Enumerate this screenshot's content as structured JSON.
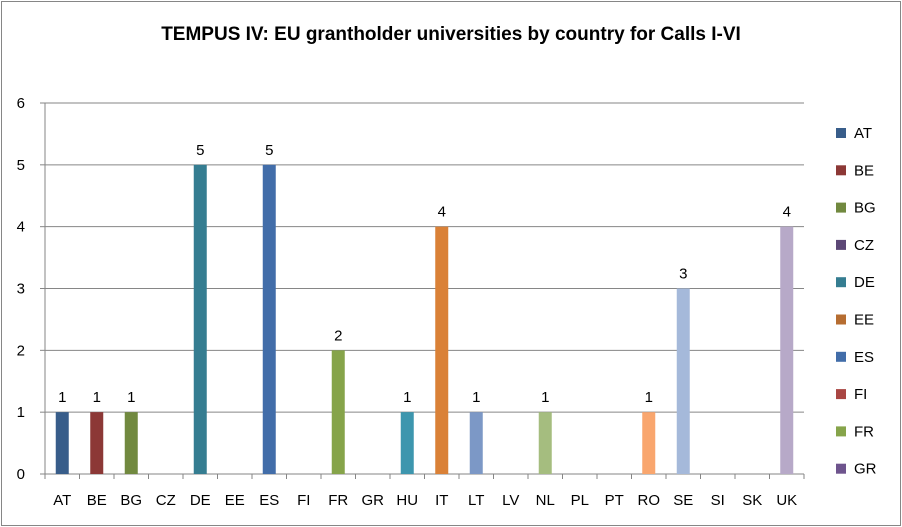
{
  "chart_data": {
    "type": "bar",
    "title": "TEMPUS IV: EU grantholder universities by country for Calls I-VI",
    "xlabel": "",
    "ylabel": "",
    "ylim": [
      0,
      6
    ],
    "yticks": [
      0,
      1,
      2,
      3,
      4,
      5,
      6
    ],
    "grid": true,
    "legend_position": "right",
    "categories": [
      "AT",
      "BE",
      "BG",
      "CZ",
      "DE",
      "EE",
      "ES",
      "FI",
      "FR",
      "GR",
      "HU",
      "IT",
      "LT",
      "LV",
      "NL",
      "PL",
      "PT",
      "RO",
      "SE",
      "SI",
      "SK",
      "UK"
    ],
    "values": [
      1,
      1,
      1,
      0,
      5,
      0,
      5,
      0,
      2,
      0,
      1,
      4,
      1,
      0,
      1,
      0,
      0,
      1,
      3,
      0,
      0,
      4
    ],
    "show_data_labels_for_nonzero": true,
    "colors": [
      "#385d8a",
      "#8c3836",
      "#71893f",
      "#5c4776",
      "#357d91",
      "#b66d31",
      "#426da9",
      "#a94643",
      "#86a44a",
      "#6e548d",
      "#3d96ae",
      "#da8137",
      "#7c98c6",
      "#c47e7c",
      "#a5bd7f",
      "#9685ac",
      "#7bb6c9",
      "#f9a66e",
      "#a5b9da",
      "#d8aeab",
      "#c6d8a7",
      "#b7a9c8"
    ],
    "legend": [
      "AT",
      "BE",
      "BG",
      "CZ",
      "DE",
      "EE",
      "ES",
      "FI",
      "FR",
      "GR"
    ]
  }
}
